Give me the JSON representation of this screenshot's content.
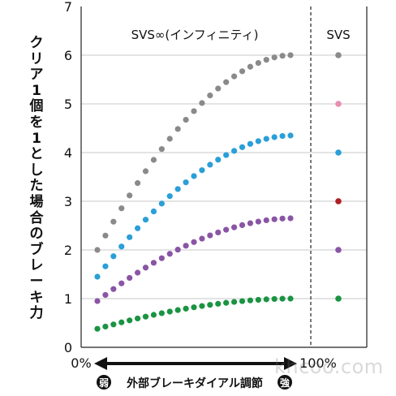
{
  "chart_data": {
    "type": "scatter",
    "ylabel": "クリア1個を1とした場合のブレーキ力",
    "ylim": [
      0,
      7
    ],
    "yticks": [
      "0",
      "1",
      "2",
      "3",
      "4",
      "5",
      "6",
      "7"
    ],
    "grid": true,
    "panels": {
      "infinity": {
        "title": "SVS∞(インフィニティ)",
        "x_start": "0%",
        "x_end": "100%"
      },
      "svs": {
        "title": "SVS"
      }
    },
    "xlabel": {
      "weak_badge": "弱",
      "text": "外部ブレーキダイアル調節",
      "strong_badge": "強"
    },
    "series": [
      {
        "color": "#8a8a8a",
        "infinity_from": 2.0,
        "infinity_to": 6.0,
        "svs_value": 6
      },
      {
        "color": "#e88fb3",
        "svs_value": 5
      },
      {
        "color": "#2a9fd8",
        "infinity_from": 1.45,
        "infinity_to": 4.35,
        "svs_value": 4
      },
      {
        "color": "#b01e23",
        "svs_value": 3
      },
      {
        "color": "#8a55a5",
        "infinity_from": 0.95,
        "infinity_to": 2.65,
        "svs_value": 2
      },
      {
        "color": "#1a9442",
        "infinity_from": 0.38,
        "infinity_to": 1.0,
        "svs_value": 1
      }
    ]
  },
  "watermark": "khcoo.com"
}
